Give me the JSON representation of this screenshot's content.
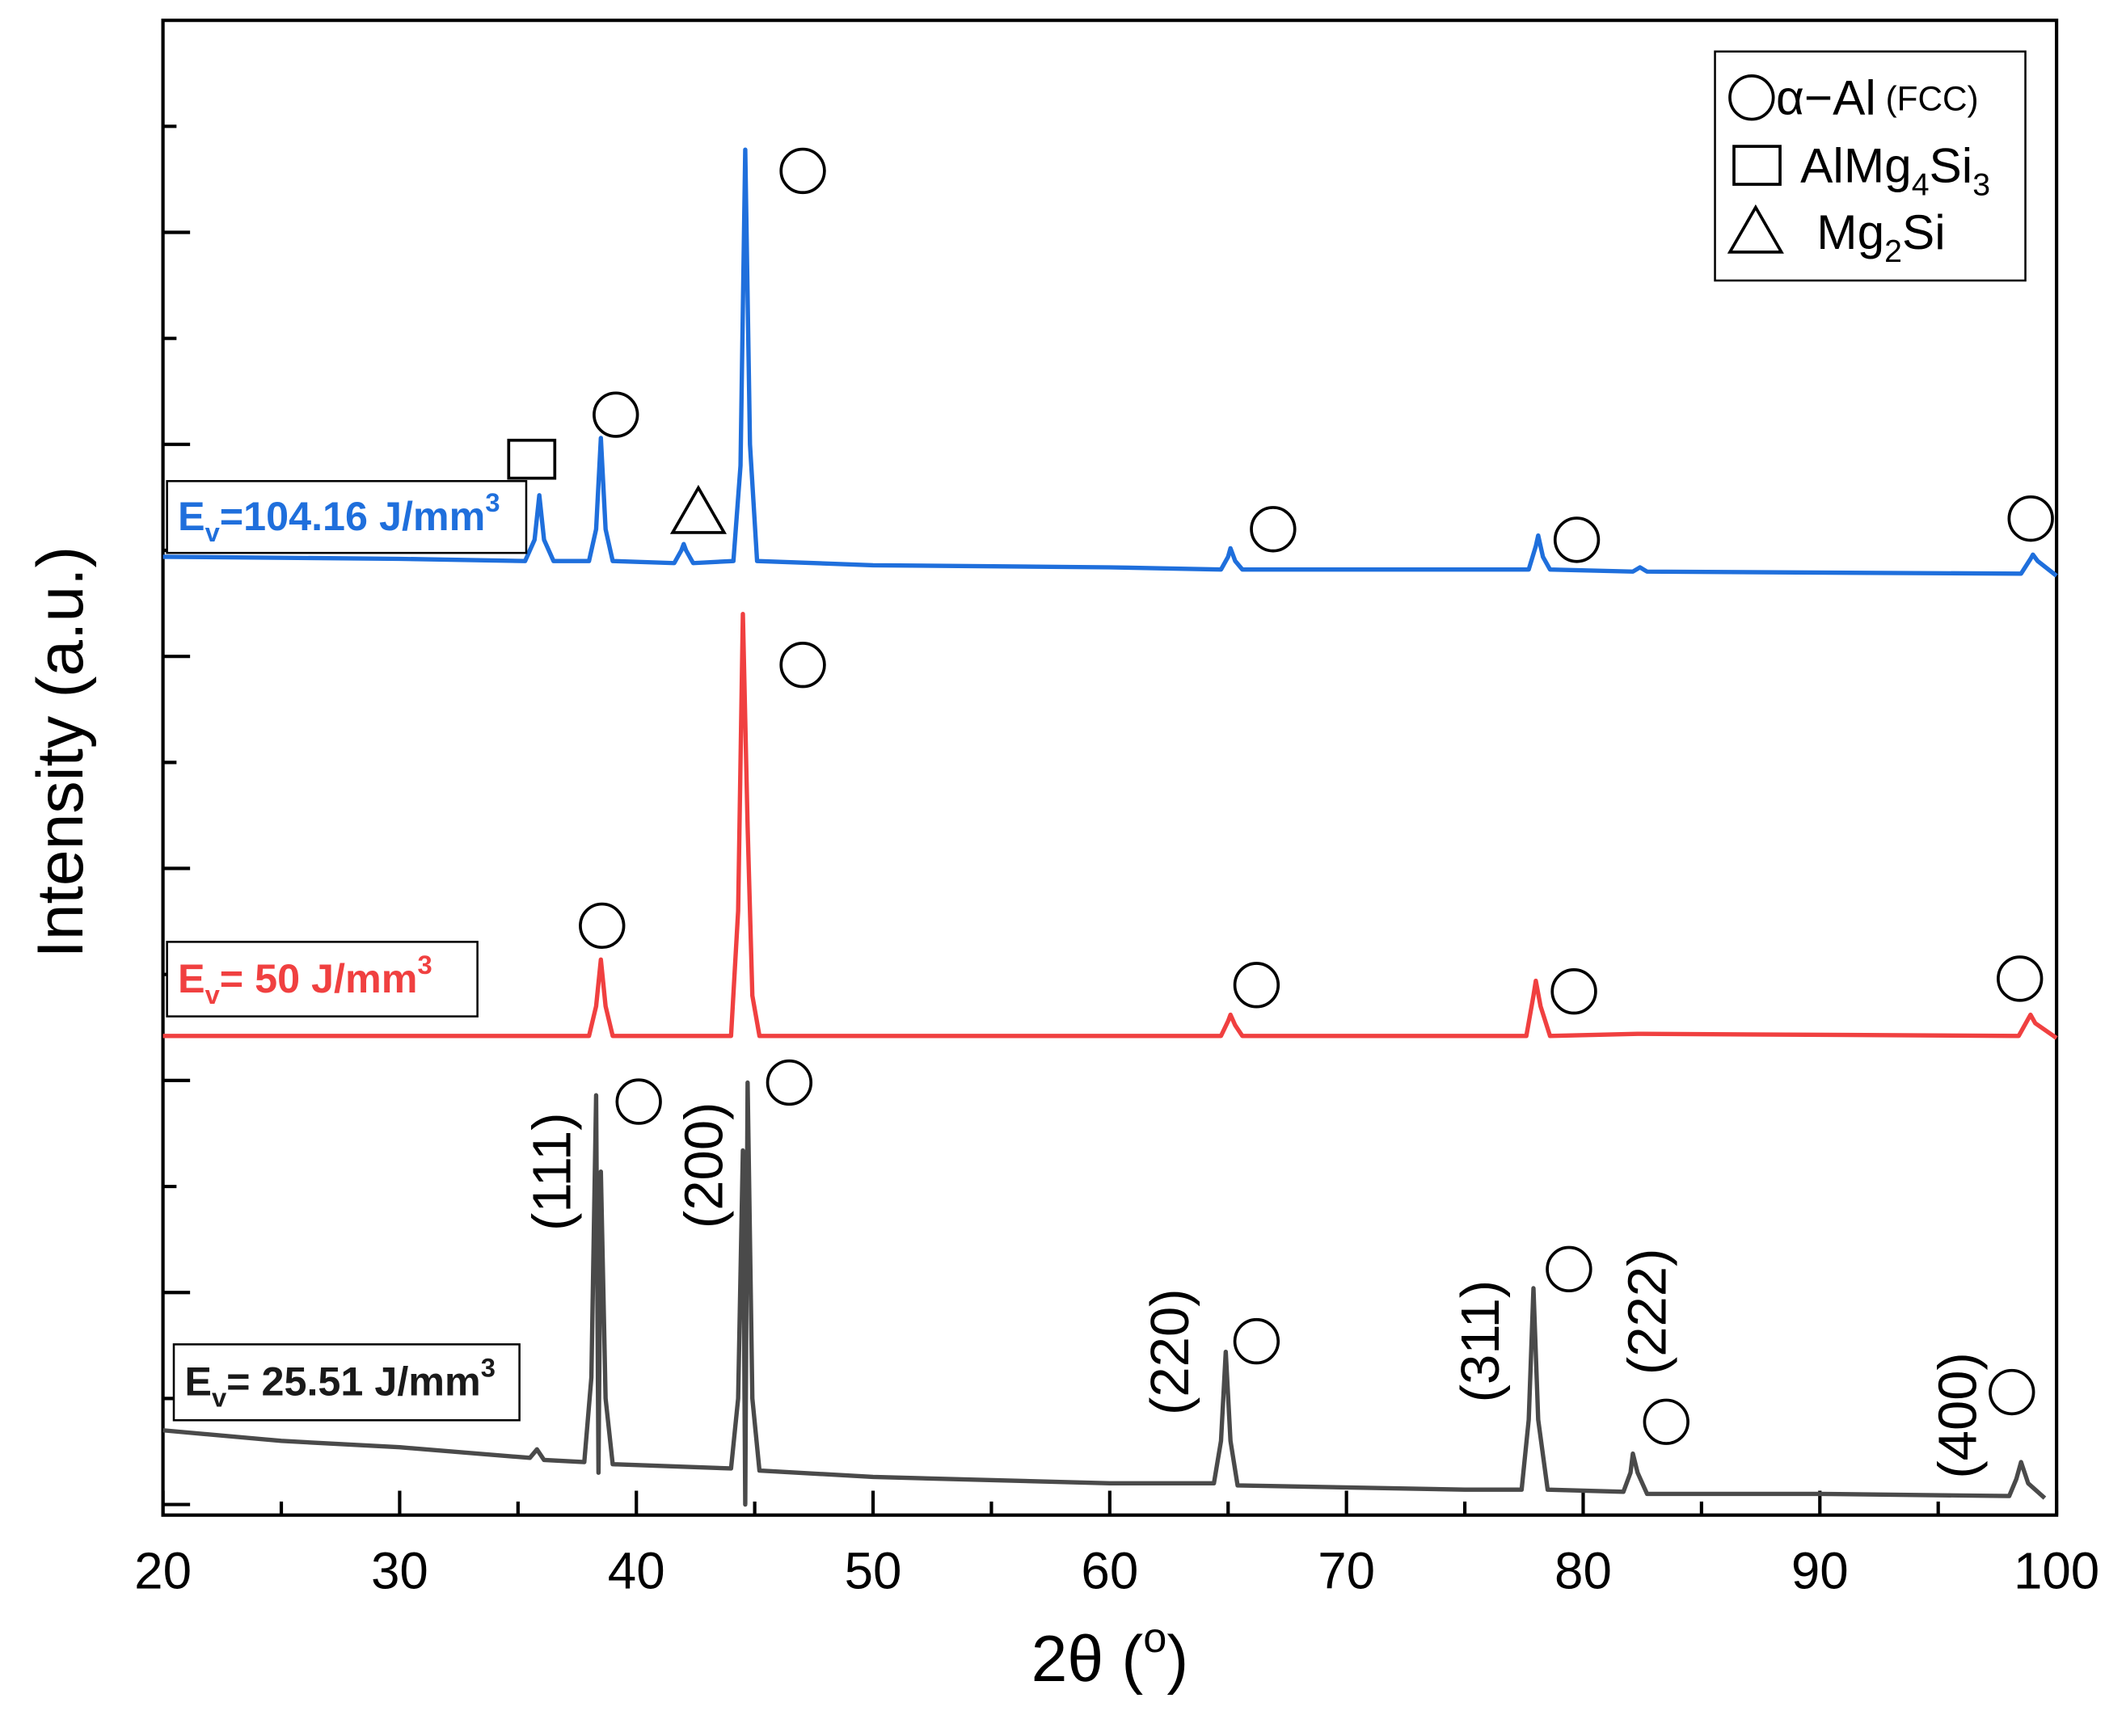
{
  "chart_data": {
    "type": "line",
    "xlabel": [
      {
        "text": "2θ ("
      },
      {
        "text": "o",
        "sup": true
      },
      {
        "text": ")"
      }
    ],
    "ylabel": "Intensity (a.u.)",
    "xlim": [
      20,
      100
    ],
    "xticks": [
      20,
      30,
      40,
      50,
      60,
      70,
      80,
      90,
      100
    ],
    "ylim": [
      -0.05,
      7.0
    ],
    "yticks": [
      0,
      0.5,
      1,
      1.5,
      2,
      2.5,
      3,
      3.5,
      4,
      4.5,
      5,
      5.5,
      6,
      6.5
    ],
    "series": [
      {
        "color": "#1f6fdc",
        "label": [
          {
            "text": "E"
          },
          {
            "text": "v",
            "sub": true
          },
          {
            "text": "=104.16 J/mm"
          },
          {
            "text": "3",
            "sup": true
          }
        ],
        "x": [
          20,
          30,
          35.3,
          35.7,
          35.9,
          36.1,
          36.5,
          38.0,
          38.3,
          38.5,
          38.7,
          39.0,
          41.6,
          41.9,
          42.0,
          42.1,
          42.4,
          44.1,
          44.4,
          44.6,
          44.8,
          45.1,
          50,
          60,
          64.7,
          65.0,
          65.1,
          65.3,
          65.6,
          77.7,
          78.0,
          78.1,
          78.3,
          78.6,
          82.1,
          82.4,
          82.7,
          98.5,
          98.9,
          99.0,
          99.2,
          100
        ],
        "values": [
          4.47,
          4.46,
          4.45,
          4.55,
          4.76,
          4.55,
          4.45,
          4.45,
          4.6,
          5.03,
          4.6,
          4.45,
          4.44,
          4.5,
          4.53,
          4.5,
          4.44,
          4.45,
          4.9,
          6.39,
          5.0,
          4.45,
          4.43,
          4.42,
          4.41,
          4.47,
          4.51,
          4.45,
          4.41,
          4.41,
          4.52,
          4.57,
          4.47,
          4.41,
          4.4,
          4.42,
          4.4,
          4.39,
          4.46,
          4.48,
          4.45,
          4.38
        ]
      },
      {
        "color": "#f04040",
        "label": [
          {
            "text": "E"
          },
          {
            "text": "v",
            "sub": true
          },
          {
            "text": "= 50 J/mm"
          },
          {
            "text": "3",
            "sup": true
          }
        ],
        "x": [
          20,
          30,
          38.0,
          38.3,
          38.5,
          38.7,
          39.0,
          44.0,
          44.3,
          44.5,
          44.7,
          44.9,
          45.2,
          55,
          64.7,
          65.0,
          65.1,
          65.3,
          65.6,
          77.6,
          77.9,
          78.0,
          78.2,
          78.6,
          82.3,
          98.4,
          98.8,
          98.9,
          99.1,
          100
        ],
        "values": [
          2.21,
          2.21,
          2.21,
          2.35,
          2.57,
          2.35,
          2.21,
          2.21,
          2.8,
          4.2,
          3.2,
          2.4,
          2.21,
          2.21,
          2.21,
          2.28,
          2.31,
          2.26,
          2.21,
          2.21,
          2.4,
          2.47,
          2.35,
          2.21,
          2.22,
          2.21,
          2.29,
          2.31,
          2.27,
          2.2
        ]
      },
      {
        "color": "#4a4a4a",
        "label": [
          {
            "text": "E"
          },
          {
            "text": "v",
            "sub": true
          },
          {
            "text": "= 25.51 J/mm"
          },
          {
            "text": "3",
            "sup": true
          }
        ],
        "x": [
          20,
          25,
          30,
          35.5,
          35.8,
          36.1,
          37.8,
          38.1,
          38.3,
          38.4,
          38.5,
          38.7,
          39.0,
          44.0,
          44.3,
          44.5,
          44.6,
          44.7,
          44.9,
          45.2,
          50,
          60,
          64.4,
          64.7,
          64.9,
          65.1,
          65.4,
          75,
          77.4,
          77.7,
          77.9,
          78.1,
          78.5,
          81.7,
          82.0,
          82.1,
          82.3,
          82.7,
          90,
          98.0,
          98.3,
          98.5,
          98.8,
          99.5
        ],
        "values": [
          0.35,
          0.3,
          0.27,
          0.22,
          0.26,
          0.21,
          0.2,
          0.6,
          1.93,
          0.15,
          1.57,
          0.5,
          0.19,
          0.17,
          0.5,
          1.67,
          0.0,
          1.99,
          0.5,
          0.16,
          0.13,
          0.1,
          0.1,
          0.3,
          0.72,
          0.3,
          0.09,
          0.07,
          0.07,
          0.4,
          1.02,
          0.4,
          0.07,
          0.06,
          0.15,
          0.24,
          0.15,
          0.05,
          0.05,
          0.04,
          0.12,
          0.2,
          0.1,
          0.03
        ]
      }
    ],
    "legend": [
      {
        "marker": "circle",
        "parts": [
          {
            "text": "α−Al"
          },
          {
            "text": " (FCC)",
            "small": true
          }
        ]
      },
      {
        "marker": "square",
        "parts": [
          {
            "text": "AlMg"
          },
          {
            "text": "4",
            "sub": true
          },
          {
            "text": "Si"
          },
          {
            "text": "3",
            "sub": true
          }
        ]
      },
      {
        "marker": "triangle",
        "parts": [
          {
            "text": "Mg"
          },
          {
            "text": "2",
            "sub": true
          },
          {
            "text": "Si"
          }
        ]
      }
    ],
    "phase_markers": [
      {
        "marker": "circle",
        "x": 47.03,
        "y": 6.29
      },
      {
        "marker": "circle",
        "x": 39.13,
        "y": 5.14
      },
      {
        "marker": "circle",
        "x": 66.9,
        "y": 4.6
      },
      {
        "marker": "circle",
        "x": 79.73,
        "y": 4.55
      },
      {
        "marker": "circle",
        "x": 98.91,
        "y": 4.65
      },
      {
        "marker": "square",
        "x": 35.58,
        "y": 4.93
      },
      {
        "marker": "triangle",
        "x": 42.62,
        "y": 4.68
      },
      {
        "marker": "circle",
        "x": 47.03,
        "y": 3.96
      },
      {
        "marker": "circle",
        "x": 38.55,
        "y": 2.73
      },
      {
        "marker": "circle",
        "x": 66.2,
        "y": 2.45
      },
      {
        "marker": "circle",
        "x": 79.61,
        "y": 2.42
      },
      {
        "marker": "circle",
        "x": 98.45,
        "y": 2.48
      },
      {
        "marker": "circle",
        "x": 40.1,
        "y": 1.9
      },
      {
        "marker": "circle",
        "x": 46.46,
        "y": 1.99
      },
      {
        "marker": "circle",
        "x": 66.2,
        "y": 0.77
      },
      {
        "marker": "circle",
        "x": 79.4,
        "y": 1.11
      },
      {
        "marker": "circle",
        "x": 83.51,
        "y": 0.39
      },
      {
        "marker": "circle",
        "x": 98.11,
        "y": 0.53
      }
    ],
    "annotations": [
      {
        "text": "(111)",
        "x": 36.61,
        "y": 1.57
      },
      {
        "text": "(200)",
        "x": 43.02,
        "y": 1.6
      },
      {
        "text": "(220)",
        "x": 62.72,
        "y": 0.72
      },
      {
        "text": "(311)",
        "x": 75.83,
        "y": 0.77
      },
      {
        "text": "(222)",
        "x": 82.88,
        "y": 0.91
      },
      {
        "text": "(400)",
        "x": 95.99,
        "y": 0.42
      }
    ]
  }
}
